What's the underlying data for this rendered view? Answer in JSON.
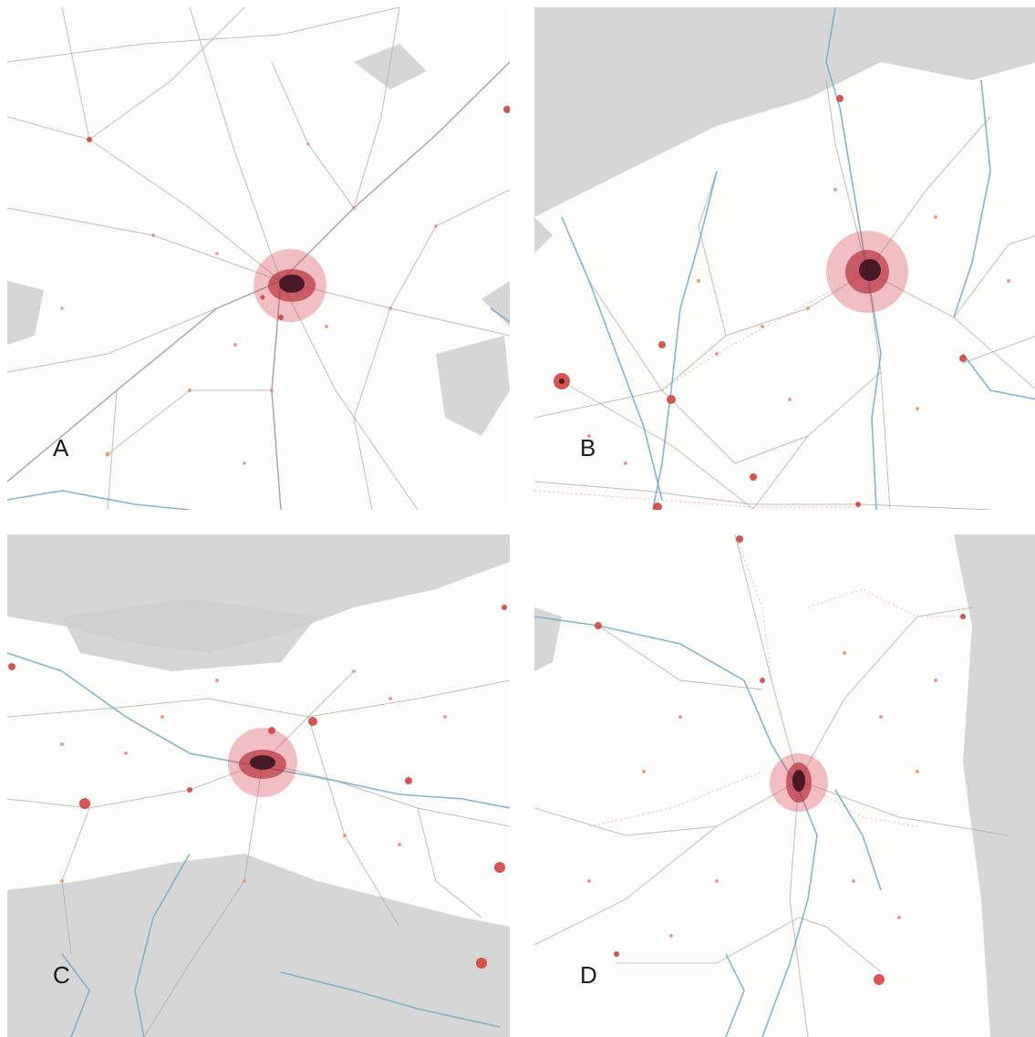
{
  "panels": [
    {
      "id": "A",
      "label": "A"
    },
    {
      "id": "B",
      "label": "B"
    },
    {
      "id": "C",
      "label": "C"
    },
    {
      "id": "D",
      "label": "D"
    }
  ],
  "colors": {
    "background": "#fdfdfb",
    "relief": "#cfcfcf",
    "roads": "#a9a9a9",
    "rivers": "#6fa9c4",
    "urban": "#b2252f",
    "urban_core": "#3a1320",
    "settlements": "#d2423f"
  }
}
